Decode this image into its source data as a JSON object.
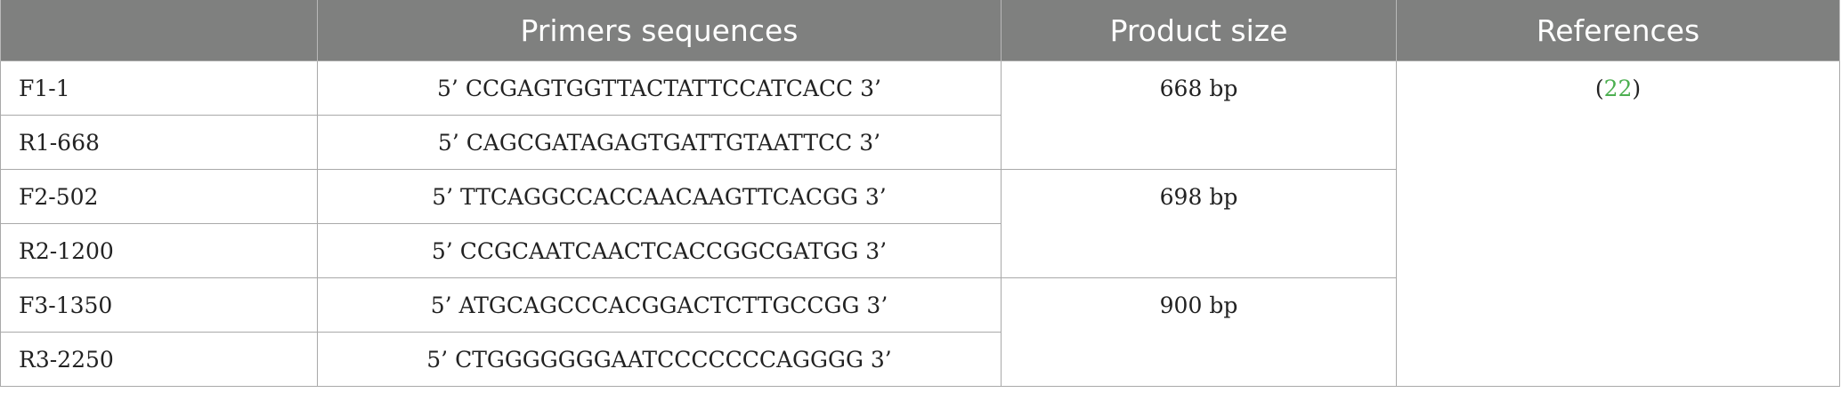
{
  "table": {
    "headers": [
      "",
      "Primers sequences",
      "Product size",
      "References"
    ],
    "rows": [
      {
        "name": "F1-1",
        "sequence": "5’ CCGAGTGGTTACTATTCCATCACC 3’"
      },
      {
        "name": "R1-668",
        "sequence": "5’ CAGCGATAGAGTGATTGTAATTCC 3’"
      },
      {
        "name": "F2-502",
        "sequence": "5’ TTCAGGCCACCAACAAGTTCACGG 3’"
      },
      {
        "name": "R2-1200",
        "sequence": "5’ CCGCAATCAACTCACCGGCGATGG 3’"
      },
      {
        "name": "F3-1350",
        "sequence": "5’ ATGCAGCCCACGGACTCTTGCCGG 3’"
      },
      {
        "name": "R3-2250",
        "sequence": "5’ CTGGGGGGGAATCCCCCCCAGGGG 3’"
      }
    ],
    "product_sizes": [
      "668 bp",
      "698 bp",
      "900 bp"
    ],
    "reference": {
      "open": "(",
      "number": "22",
      "close": ")",
      "link_color": "#4caf50"
    },
    "header_color": "#7f807f"
  }
}
